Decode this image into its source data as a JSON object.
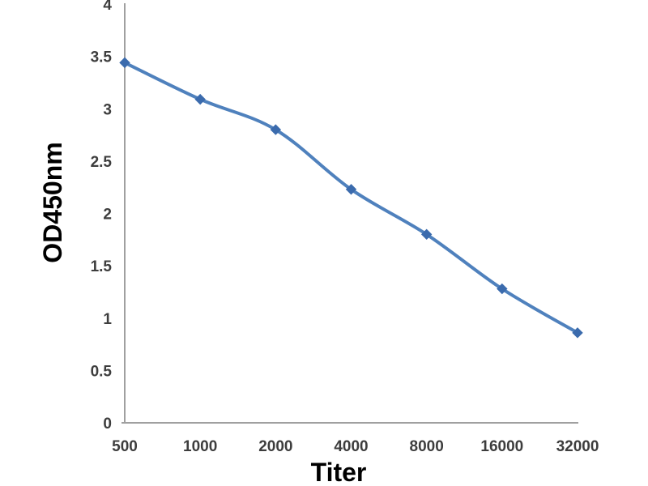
{
  "chart_data": {
    "type": "line",
    "title": "",
    "categories": [
      "500",
      "1000",
      "2000",
      "4000",
      "8000",
      "16000",
      "32000"
    ],
    "series": [
      {
        "name": "OD450nm",
        "values": [
          3.44,
          3.09,
          2.8,
          2.23,
          1.8,
          1.28,
          0.86
        ]
      }
    ],
    "xlabel": "Titer",
    "ylabel": "OD450nm",
    "ylim": [
      0,
      4
    ],
    "yticks": [
      0,
      0.5,
      1,
      1.5,
      2,
      2.5,
      3,
      3.5,
      4
    ],
    "ytick_labels": [
      "0",
      "0.5",
      "1",
      "1.5",
      "2",
      "2.5",
      "3",
      "3.5",
      "4"
    ],
    "grid": false,
    "legend": "none",
    "marker": "diamond",
    "line_style": "smooth",
    "colors": {
      "line": "#4f81bd",
      "marker": "#3b6bad",
      "axis": "#a0a0a0",
      "tick_text": "#3d3d3d",
      "axis_title_text": "#000000",
      "background": "#ffffff"
    }
  }
}
